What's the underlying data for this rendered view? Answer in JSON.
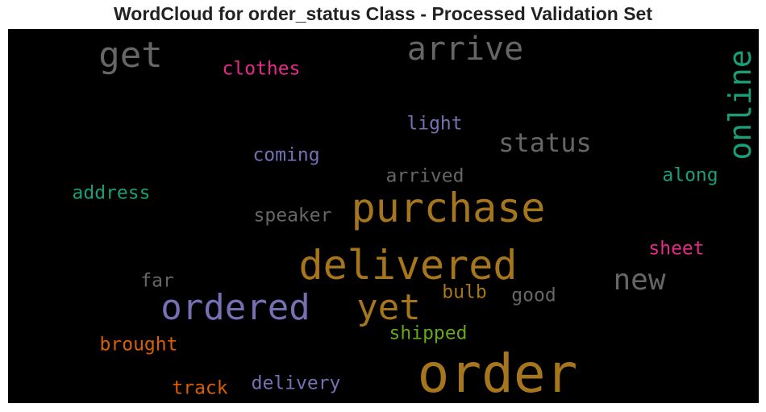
{
  "title": "WordCloud for order_status Class - Processed Validation Set",
  "background_color": "#000000",
  "words": [
    {
      "text": "order",
      "color": "#a6761d",
      "vertical": false
    },
    {
      "text": "delivered",
      "color": "#a6761d",
      "vertical": false
    },
    {
      "text": "purchase",
      "color": "#a6761d",
      "vertical": false
    },
    {
      "text": "ordered",
      "color": "#7570b3",
      "vertical": false
    },
    {
      "text": "yet",
      "color": "#a6761d",
      "vertical": false
    },
    {
      "text": "online",
      "color": "#1b9e77",
      "vertical": true
    },
    {
      "text": "arrive",
      "color": "#666666",
      "vertical": false
    },
    {
      "text": "get",
      "color": "#666666",
      "vertical": false
    },
    {
      "text": "new",
      "color": "#666666",
      "vertical": false
    },
    {
      "text": "status",
      "color": "#666666",
      "vertical": false
    },
    {
      "text": "clothes",
      "color": "#e7298a",
      "vertical": false
    },
    {
      "text": "light",
      "color": "#7570b3",
      "vertical": false
    },
    {
      "text": "coming",
      "color": "#7570b3",
      "vertical": false
    },
    {
      "text": "arrived",
      "color": "#666666",
      "vertical": false
    },
    {
      "text": "along",
      "color": "#1b9e77",
      "vertical": false
    },
    {
      "text": "address",
      "color": "#1b9e77",
      "vertical": false
    },
    {
      "text": "speaker",
      "color": "#666666",
      "vertical": false
    },
    {
      "text": "sheet",
      "color": "#e7298a",
      "vertical": false
    },
    {
      "text": "far",
      "color": "#666666",
      "vertical": false
    },
    {
      "text": "bulb",
      "color": "#a6761d",
      "vertical": false
    },
    {
      "text": "good",
      "color": "#666666",
      "vertical": false
    },
    {
      "text": "shipped",
      "color": "#66a61e",
      "vertical": false
    },
    {
      "text": "brought",
      "color": "#d95f02",
      "vertical": false
    },
    {
      "text": "track",
      "color": "#d95f02",
      "vertical": false
    },
    {
      "text": "delivery",
      "color": "#7570b3",
      "vertical": false
    }
  ]
}
